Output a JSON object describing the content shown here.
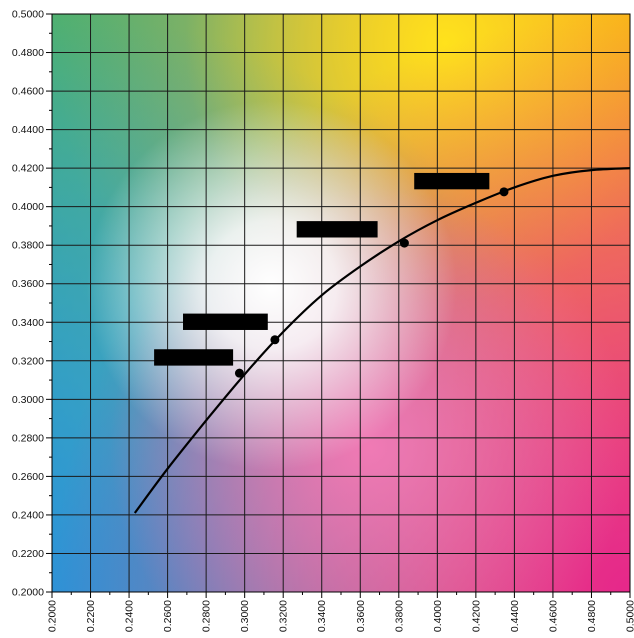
{
  "chart_data": {
    "type": "scatter",
    "title": "",
    "xlabel": "",
    "ylabel": "",
    "xlim": [
      0.2,
      0.5
    ],
    "ylim": [
      0.2,
      0.5
    ],
    "grid": true,
    "x_ticks": [
      "0.2000",
      "0.2200",
      "0.2400",
      "0.2600",
      "0.2800",
      "0.3000",
      "0.3200",
      "0.3400",
      "0.3600",
      "0.3800",
      "0.4000",
      "0.4200",
      "0.4400",
      "0.4600",
      "0.4800",
      "0.5000"
    ],
    "y_ticks": [
      "0.2000",
      "0.2200",
      "0.2400",
      "0.2600",
      "0.2800",
      "0.3000",
      "0.3200",
      "0.3400",
      "0.3600",
      "0.3800",
      "0.4000",
      "0.4200",
      "0.4400",
      "0.4600",
      "0.4800",
      "0.5000"
    ],
    "background": "CIE 1931 chromaticity colour region",
    "series": [
      {
        "kind": "curve",
        "color": "#000000",
        "x": [
          0.243,
          0.26,
          0.28,
          0.3,
          0.32,
          0.34,
          0.36,
          0.38,
          0.4,
          0.42,
          0.44,
          0.46,
          0.48,
          0.5
        ],
        "y": [
          0.241,
          0.264,
          0.289,
          0.313,
          0.335,
          0.354,
          0.369,
          0.382,
          0.393,
          0.402,
          0.41,
          0.416,
          0.419,
          0.42
        ]
      },
      {
        "kind": "points",
        "color": "#000000",
        "x": [
          0.2973,
          0.3157,
          0.3829,
          0.4346
        ],
        "y": [
          0.3136,
          0.3309,
          0.3811,
          0.4077
        ]
      }
    ],
    "redactions": [
      {
        "x": [
          0.253,
          0.294
        ],
        "y": [
          0.3175,
          0.326
        ]
      },
      {
        "x": [
          0.268,
          0.312
        ],
        "y": [
          0.336,
          0.3445
        ]
      },
      {
        "x": [
          0.327,
          0.369
        ],
        "y": [
          0.384,
          0.3925
        ]
      },
      {
        "x": [
          0.388,
          0.427
        ],
        "y": [
          0.409,
          0.4175
        ]
      }
    ]
  }
}
